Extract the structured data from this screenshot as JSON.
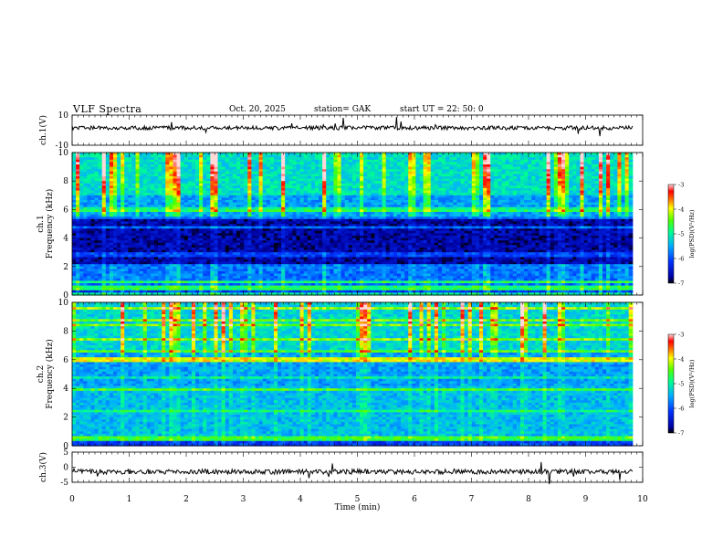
{
  "header": {
    "title": "VLF  Spectra",
    "date": "Oct. 20, 2025",
    "station": "station= GAK",
    "start_ut": "start  UT  =    22: 50: 0"
  },
  "chart_data": {
    "type": "heatmap",
    "xlabel": "Time  (min)",
    "xlim": [
      0,
      10
    ],
    "xticks": [
      "0",
      "1",
      "2",
      "3",
      "4",
      "5",
      "6",
      "7",
      "8",
      "9",
      "10"
    ],
    "data_end_min": 9.82,
    "panels": [
      {
        "id": "ch1-voltage",
        "type": "line",
        "ylabel": "ch.1(V)",
        "ylim": [
          -10,
          10
        ],
        "yticks": [
          "10",
          "-10"
        ],
        "baseline": 1.5
      },
      {
        "id": "ch1-spectrogram",
        "type": "heatmap",
        "ylabel_line1": "ch.1",
        "ylabel_line2": "Frequency  (kHz)",
        "ylim": [
          0,
          10
        ],
        "yticks": [
          "10",
          "8",
          "6",
          "4",
          "2",
          "0"
        ],
        "colorbar": {
          "label": "log(PSD)(V²/Hz)",
          "range": [
            -7,
            -3
          ],
          "ticks": [
            "-3",
            "-4",
            "-5",
            "-6",
            "-7"
          ]
        },
        "dark_band_khz": [
          2.2,
          5.5
        ],
        "emission_band_khz": [
          0.6,
          2.1
        ]
      },
      {
        "id": "ch2-spectrogram",
        "type": "heatmap",
        "ylabel_line1": "ch.2",
        "ylabel_line2": "Frequency  (kHz)",
        "ylim": [
          0,
          10
        ],
        "yticks": [
          "10",
          "8",
          "6",
          "4",
          "2",
          "0"
        ],
        "colorbar": {
          "label": "log(PSD)(V²/Hz)",
          "range": [
            -7,
            -3
          ],
          "ticks": [
            "-3",
            "-4",
            "-5",
            "-6",
            "-7"
          ]
        },
        "orange_line_khz": 6.0,
        "emission_band_khz": [
          0.5,
          4.0
        ]
      },
      {
        "id": "ch3-voltage",
        "type": "line",
        "ylabel": "ch.3(V)",
        "ylim": [
          -5,
          5
        ],
        "yticks": [
          "5",
          "0",
          "-5"
        ],
        "baseline": -1.5
      }
    ]
  },
  "colors": {
    "background": "#ffffff",
    "axis": "#000000"
  }
}
